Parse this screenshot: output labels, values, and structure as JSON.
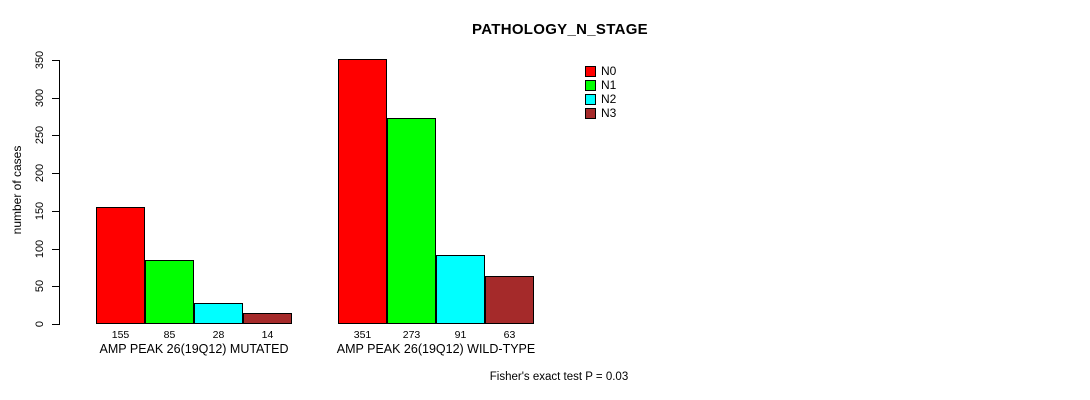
{
  "chart_data": {
    "type": "bar",
    "title": "PATHOLOGY_N_STAGE",
    "ylabel": "number of cases",
    "xlabel": "",
    "ylim": [
      0,
      350
    ],
    "yticks": [
      0,
      50,
      100,
      150,
      200,
      250,
      300,
      350
    ],
    "grid": false,
    "legend_position": "top-right",
    "categories": [
      "AMP PEAK 26(19Q12) MUTATED",
      "AMP PEAK 26(19Q12) WILD-TYPE"
    ],
    "series": [
      {
        "name": "N0",
        "color": "#ff0000",
        "values": [
          155,
          351
        ]
      },
      {
        "name": "N1",
        "color": "#00ff00",
        "values": [
          85,
          273
        ]
      },
      {
        "name": "N2",
        "color": "#00ffff",
        "values": [
          28,
          91
        ]
      },
      {
        "name": "N3",
        "color": "#a52a2a",
        "values": [
          14,
          63
        ]
      }
    ],
    "value_labels_shown": true,
    "annotation": "Fisher's exact test P = 0.03"
  },
  "colors": {
    "background": "#ffffff",
    "axis": "#000000",
    "text": "#000000"
  }
}
